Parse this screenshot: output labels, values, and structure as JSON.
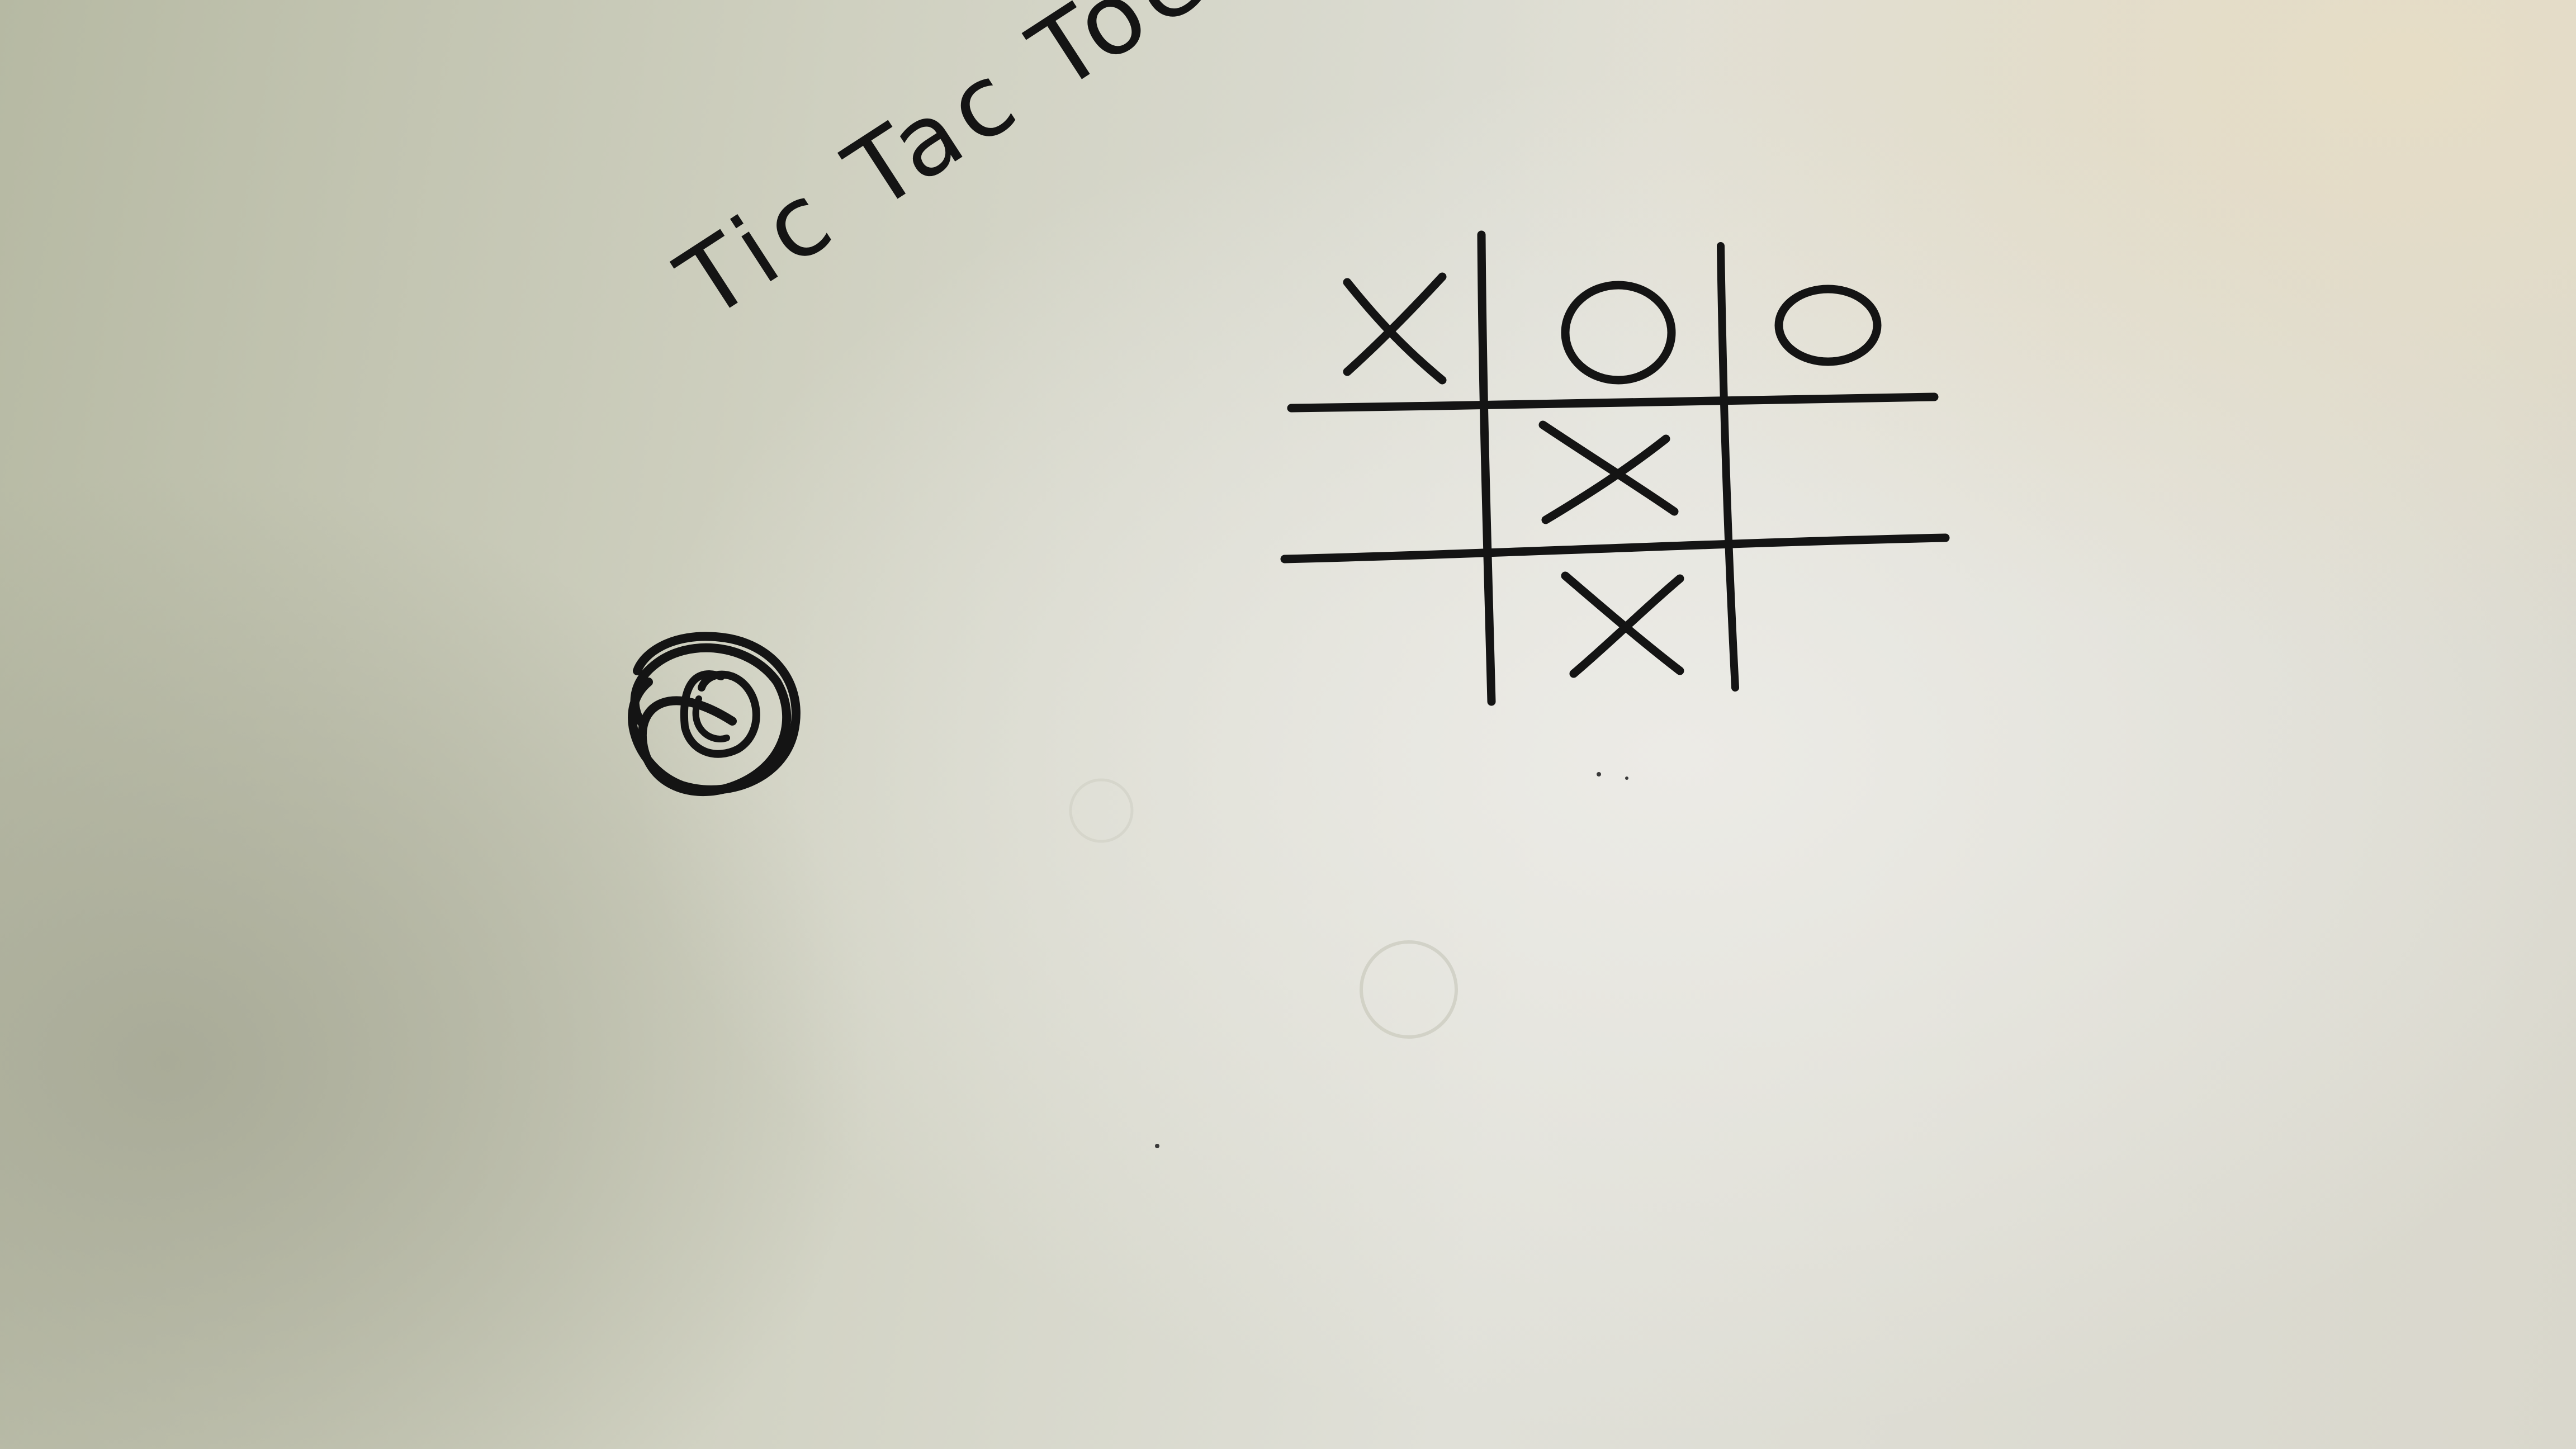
{
  "sheet": {
    "title": "Tic Tac Toe",
    "board": [
      [
        "X",
        "O",
        "O"
      ],
      [
        "",
        "X",
        ""
      ],
      [
        "",
        "X",
        ""
      ]
    ],
    "side_doodle": "spiral",
    "colors": {
      "ink": "#141414",
      "paper": "#d9d8cc"
    }
  }
}
